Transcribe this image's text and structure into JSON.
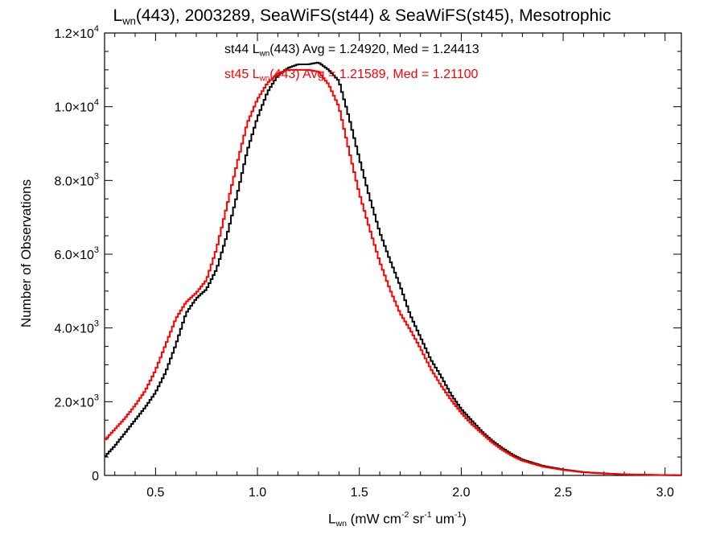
{
  "title": {
    "prefix": "L",
    "sub": "wn",
    "rest": "(443), 2003289, SeaWiFS(st44) & SeaWiFS(st45), Mesotrophic"
  },
  "annotations": [
    {
      "prefix": "st44 L",
      "sub": "wn",
      "rest": "(443) Avg = 1.24920, Med = 1.24413",
      "color": "#000000"
    },
    {
      "prefix": "st45 L",
      "sub": "wn",
      "rest": "(443) Avg = 1.21589, Med = 1.21100",
      "color": "#ff0000"
    }
  ],
  "xlabel": {
    "prefix": "L",
    "sub": "wn",
    "a": " (mW cm",
    "sup1": "-2",
    "b": " sr",
    "sup2": "-1",
    "c": " um",
    "sup3": "-1",
    "d": ")"
  },
  "ylabel": "Number of Observations",
  "chart_data": {
    "type": "line",
    "step": true,
    "xlim": [
      0.25,
      3.08
    ],
    "ylim": [
      0,
      12000
    ],
    "xticks": [
      0.5,
      1.0,
      1.5,
      2.0,
      2.5,
      3.0
    ],
    "xtick_labels": [
      "0.5",
      "1.0",
      "1.5",
      "2.0",
      "2.5",
      "3.0"
    ],
    "yticks": [
      0,
      2000,
      4000,
      6000,
      8000,
      10000,
      12000
    ],
    "ytick_labels": [
      {
        "mant": "0",
        "exp": ""
      },
      {
        "mant": "2.0×10",
        "exp": "3"
      },
      {
        "mant": "4.0×10",
        "exp": "3"
      },
      {
        "mant": "6.0×10",
        "exp": "3"
      },
      {
        "mant": "8.0×10",
        "exp": "3"
      },
      {
        "mant": "1.0×10",
        "exp": "4"
      },
      {
        "mant": "1.2×10",
        "exp": "4"
      }
    ],
    "grid": false,
    "series": [
      {
        "name": "st44",
        "color": "#000000",
        "x": [
          0.25,
          0.3,
          0.35,
          0.4,
          0.45,
          0.5,
          0.55,
          0.6,
          0.65,
          0.7,
          0.75,
          0.8,
          0.85,
          0.9,
          0.95,
          1.0,
          1.05,
          1.1,
          1.15,
          1.2,
          1.25,
          1.3,
          1.35,
          1.4,
          1.45,
          1.5,
          1.55,
          1.6,
          1.65,
          1.7,
          1.75,
          1.8,
          1.85,
          1.9,
          1.95,
          2.0,
          2.05,
          2.1,
          2.15,
          2.2,
          2.25,
          2.3,
          2.4,
          2.5,
          2.6,
          2.7,
          2.8,
          2.9,
          3.0,
          3.08
        ],
        "values": [
          500,
          800,
          1150,
          1500,
          1850,
          2250,
          2800,
          3550,
          4400,
          4800,
          5050,
          5600,
          6500,
          7600,
          8800,
          9700,
          10400,
          10850,
          11050,
          11150,
          11150,
          11200,
          11000,
          10700,
          9700,
          8600,
          7550,
          6600,
          5850,
          5150,
          4350,
          3750,
          3150,
          2700,
          2200,
          1800,
          1500,
          1200,
          950,
          750,
          570,
          430,
          260,
          160,
          90,
          55,
          30,
          18,
          10,
          5
        ]
      },
      {
        "name": "st45",
        "color": "#ff0000",
        "x": [
          0.25,
          0.3,
          0.35,
          0.4,
          0.45,
          0.5,
          0.55,
          0.6,
          0.65,
          0.7,
          0.75,
          0.8,
          0.85,
          0.9,
          0.95,
          1.0,
          1.05,
          1.1,
          1.15,
          1.2,
          1.25,
          1.3,
          1.35,
          1.4,
          1.45,
          1.5,
          1.55,
          1.6,
          1.65,
          1.7,
          1.75,
          1.8,
          1.85,
          1.9,
          1.95,
          2.0,
          2.05,
          2.1,
          2.15,
          2.2,
          2.25,
          2.3,
          2.4,
          2.5,
          2.6,
          2.7,
          2.8,
          2.9,
          3.0,
          3.08
        ],
        "values": [
          950,
          1250,
          1550,
          1900,
          2300,
          2850,
          3550,
          4250,
          4700,
          4950,
          5300,
          6150,
          7300,
          8450,
          9550,
          10200,
          10650,
          10900,
          11000,
          11000,
          11000,
          10950,
          10600,
          10000,
          8800,
          7650,
          6700,
          5800,
          5050,
          4400,
          3950,
          3450,
          2900,
          2450,
          2050,
          1700,
          1400,
          1150,
          900,
          700,
          530,
          400,
          240,
          150,
          85,
          50,
          28,
          16,
          9,
          4
        ]
      }
    ]
  }
}
